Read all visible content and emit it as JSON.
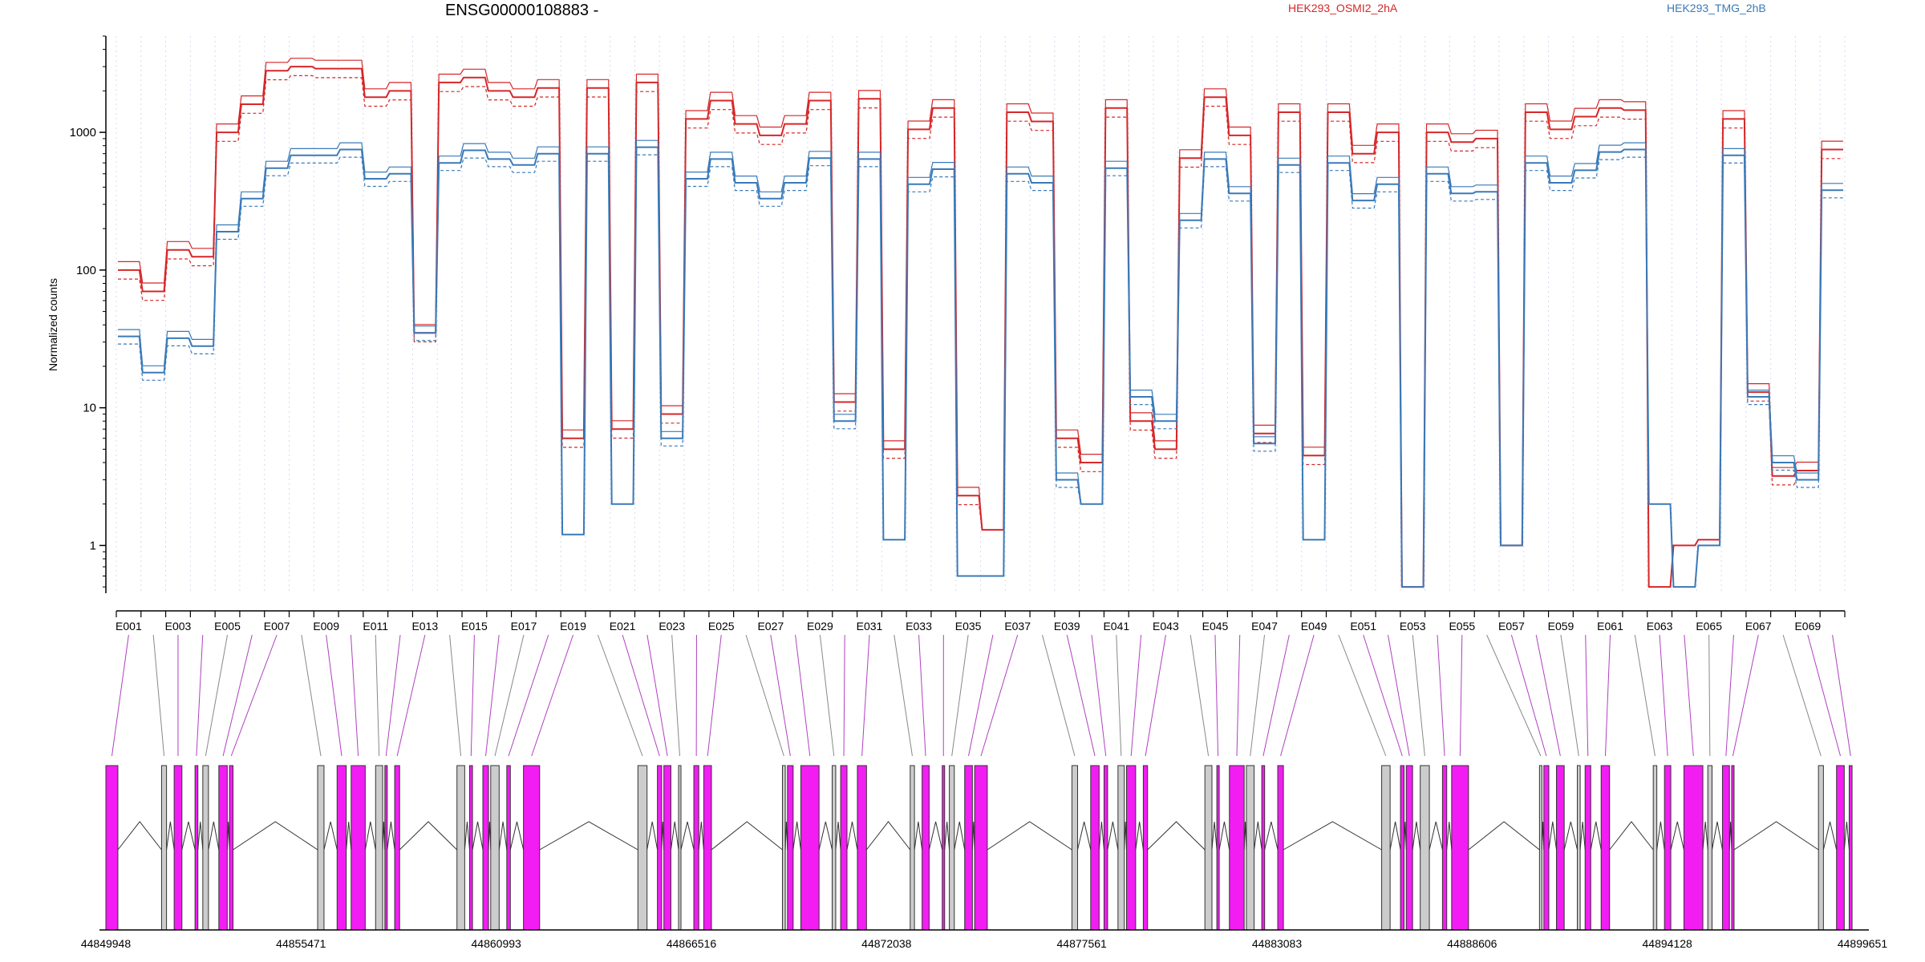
{
  "chart_data": {
    "type": "line",
    "title": "ENSG00000108883 -",
    "ylabel": "Normalized counts",
    "yscale": "log",
    "ylim": [
      0.45,
      5000
    ],
    "yticks": [
      1,
      10,
      100,
      1000
    ],
    "ytick_labels": [
      "1",
      "10",
      "100",
      "1000"
    ],
    "grid": "vertical dotted per exon",
    "legend_position": "top",
    "colors": {
      "group_a": "#d62728",
      "group_b": "#3a7ab8",
      "exon_fill": "#f21df2",
      "exon_dim": "#cccccc",
      "link": "#888888",
      "link_hi": "#b040c0"
    },
    "legend": [
      {
        "label": "HEK293_OSMI2_2hA",
        "color": "#d62728"
      },
      {
        "label": "HEK293_TMG_2hB",
        "color": "#3a7ab8"
      }
    ],
    "exon_count": 70,
    "exon_tick_labels": [
      "E001",
      "E003",
      "E005",
      "E007",
      "E009",
      "E011",
      "E013",
      "E015",
      "E017",
      "E019",
      "E021",
      "E023",
      "E025",
      "E027",
      "E029",
      "E031",
      "E033",
      "E035",
      "E037",
      "E039",
      "E041",
      "E043",
      "E045",
      "E047",
      "E049",
      "E051",
      "E053",
      "E055",
      "E057",
      "E059",
      "E061",
      "E063",
      "E065",
      "E067",
      "E069"
    ],
    "series": [
      {
        "name": "HEK293_OSMI2_2hA",
        "color": "#d62728",
        "values": [
          100,
          70,
          140,
          125,
          1000,
          1600,
          2800,
          3000,
          2900,
          2900,
          1800,
          2000,
          35,
          2300,
          2500,
          2000,
          1800,
          2100,
          6,
          2100,
          7,
          2300,
          9,
          1250,
          1700,
          1150,
          950,
          1150,
          1700,
          11,
          1750,
          5,
          1050,
          1500,
          2.3,
          1.3,
          1400,
          1200,
          6,
          4,
          1500,
          8,
          5,
          650,
          1800,
          950,
          6.5,
          1400,
          4.5,
          1400,
          700,
          1000,
          0.5,
          1000,
          850,
          900,
          1,
          1400,
          1050,
          1300,
          1500,
          1450,
          0.5,
          1,
          1.1,
          1250,
          13,
          3.2,
          3.5,
          750
        ]
      },
      {
        "name": "HEK293_TMG_2hB",
        "color": "#3a7ab8",
        "values": [
          33,
          18,
          32,
          28,
          190,
          330,
          550,
          680,
          680,
          750,
          460,
          500,
          35,
          600,
          740,
          640,
          580,
          700,
          1.2,
          700,
          2,
          780,
          6,
          460,
          640,
          430,
          330,
          430,
          650,
          8,
          640,
          1.1,
          420,
          540,
          0.6,
          0.6,
          500,
          430,
          3,
          2,
          550,
          12,
          8,
          230,
          640,
          360,
          5.5,
          580,
          1.1,
          600,
          320,
          420,
          0.5,
          500,
          360,
          370,
          1,
          600,
          430,
          530,
          720,
          750,
          2,
          0.5,
          1,
          680,
          12,
          4,
          3,
          380
        ]
      }
    ],
    "exons_panel": {
      "x_tick_labels": [
        "44849948",
        "44855471",
        "44860993",
        "44866516",
        "44872038",
        "44877561",
        "44883083",
        "44888606",
        "44894128",
        "44899651"
      ]
    }
  }
}
